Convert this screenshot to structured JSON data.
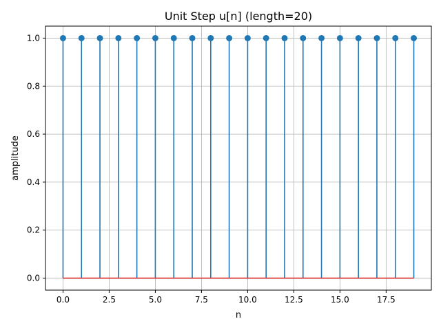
{
  "chart_data": {
    "type": "stem",
    "title": "Unit Step u[n] (length=20)",
    "xlabel": "n",
    "ylabel": "amplitude",
    "xlim": [
      -0.95,
      19.95
    ],
    "ylim": [
      -0.05,
      1.05
    ],
    "grid": true,
    "x": [
      0,
      1,
      2,
      3,
      4,
      5,
      6,
      7,
      8,
      9,
      10,
      11,
      12,
      13,
      14,
      15,
      16,
      17,
      18,
      19
    ],
    "y": [
      1,
      1,
      1,
      1,
      1,
      1,
      1,
      1,
      1,
      1,
      1,
      1,
      1,
      1,
      1,
      1,
      1,
      1,
      1,
      1
    ],
    "baseline": 0,
    "xticks": [
      0.0,
      2.5,
      5.0,
      7.5,
      10.0,
      12.5,
      15.0,
      17.5
    ],
    "xtick_labels": [
      "0.0",
      "2.5",
      "5.0",
      "7.5",
      "10.0",
      "12.5",
      "15.0",
      "17.5"
    ],
    "yticks": [
      0.0,
      0.2,
      0.4,
      0.6,
      0.8,
      1.0
    ],
    "ytick_labels": [
      "0.0",
      "0.2",
      "0.4",
      "0.6",
      "0.8",
      "1.0"
    ],
    "colors": {
      "stem": "#1f77b4",
      "marker": "#1f77b4",
      "baseline": "#d62728",
      "grid": "#b0b0b0"
    }
  }
}
